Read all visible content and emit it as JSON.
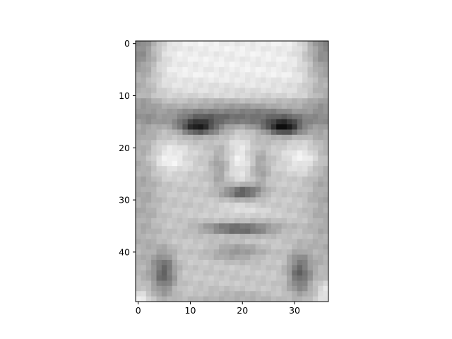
{
  "chart_data": {
    "type": "heatmap",
    "colormap": "gray",
    "title": "",
    "xlabel": "",
    "ylabel": "",
    "grid": false,
    "image_shape": [
      50,
      37
    ],
    "xlim": [
      -0.5,
      36.5
    ],
    "ylim": [
      49.5,
      -0.5
    ],
    "xticks": [
      {
        "value": 0,
        "label": "0"
      },
      {
        "value": 10,
        "label": "10"
      },
      {
        "value": 20,
        "label": "20"
      },
      {
        "value": 30,
        "label": "30"
      }
    ],
    "yticks": [
      {
        "value": 0,
        "label": "0"
      },
      {
        "value": 10,
        "label": "10"
      },
      {
        "value": 20,
        "label": "20"
      },
      {
        "value": 30,
        "label": "30"
      },
      {
        "value": 40,
        "label": "40"
      }
    ],
    "features": {
      "forehead": {
        "row_range": [
          0,
          9
        ],
        "intensity": 0.93
      },
      "eyebrow_band": {
        "row_range": [
          11,
          14
        ],
        "intensity": 0.45
      },
      "left_eye": {
        "center": [
          16,
          11.5
        ],
        "intensity": 0.12
      },
      "right_eye": {
        "center": [
          16,
          28
        ],
        "intensity": 0.05
      },
      "nose_bridge": {
        "col": 19.5,
        "row_range": [
          18,
          27
        ],
        "intensity": 0.82
      },
      "nostrils": {
        "center": [
          28.5,
          20
        ],
        "intensity": 0.28
      },
      "mouth": {
        "center": [
          35.5,
          19.5
        ],
        "intensity": 0.35
      },
      "chin": {
        "center": [
          40,
          19
        ],
        "intensity": 0.5
      },
      "cheeks": {
        "rows": [
          20,
          25
        ],
        "intensity": 0.88
      }
    }
  }
}
